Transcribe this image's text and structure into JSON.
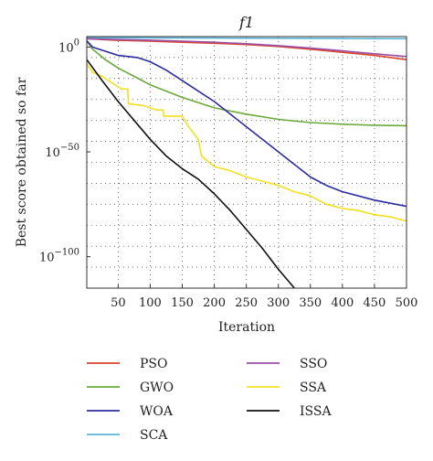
{
  "chart_data": {
    "type": "line",
    "title": "f1",
    "xlabel": "Iteration",
    "ylabel": "Best score obtained so far",
    "xscale": "linear",
    "yscale": "log",
    "xlim": [
      1,
      500
    ],
    "ylim_log10": [
      -115,
      5
    ],
    "xticks": [
      {
        "value": 50,
        "label": "50"
      },
      {
        "value": 100,
        "label": "100"
      },
      {
        "value": 150,
        "label": "150"
      },
      {
        "value": 200,
        "label": "200"
      },
      {
        "value": 250,
        "label": "250"
      },
      {
        "value": 300,
        "label": "300"
      },
      {
        "value": 350,
        "label": "350"
      },
      {
        "value": 400,
        "label": "400"
      },
      {
        "value": 450,
        "label": "450"
      },
      {
        "value": 500,
        "label": "500"
      }
    ],
    "yticks": [
      {
        "log10": 0,
        "base": "10",
        "exp": "0"
      },
      {
        "log10": -50,
        "base": "10",
        "exp": "−50"
      },
      {
        "log10": -100,
        "base": "10",
        "exp": "−100"
      }
    ],
    "grid": true,
    "legend_position": "below",
    "series": [
      {
        "name": "PSO",
        "color": "#d9442b",
        "x": [
          1,
          50,
          100,
          150,
          200,
          250,
          300,
          350,
          400,
          450,
          500
        ],
        "log10_y": [
          4,
          3.2,
          2.8,
          2.3,
          1.8,
          1.2,
          0.3,
          -1,
          -2.5,
          -4,
          -6
        ]
      },
      {
        "name": "GWO",
        "color": "#6aaa3a",
        "x": [
          1,
          10,
          30,
          50,
          75,
          100,
          125,
          150,
          200,
          250,
          300,
          350,
          400,
          450,
          500
        ],
        "log10_y": [
          3,
          -1,
          -6,
          -10,
          -14,
          -18,
          -21,
          -24,
          -29,
          -32,
          -34.5,
          -36,
          -36.8,
          -37.3,
          -37.5
        ]
      },
      {
        "name": "WOA",
        "color": "#2b2ba0",
        "x": [
          1,
          10,
          30,
          50,
          80,
          100,
          125,
          150,
          175,
          200,
          225,
          250,
          275,
          300,
          325,
          350,
          375,
          400,
          450,
          500
        ],
        "log10_y": [
          3,
          0,
          -2,
          -4,
          -5,
          -7,
          -11,
          -16,
          -21,
          -26,
          -32,
          -38,
          -44,
          -50,
          -56,
          -62,
          -66,
          -69,
          -73,
          -76
        ]
      },
      {
        "name": "SCA",
        "color": "#58b4d6",
        "x": [
          1,
          100,
          200,
          300,
          400,
          500
        ],
        "log10_y": [
          4.5,
          4.4,
          4.3,
          4.2,
          4.1,
          4.0
        ]
      },
      {
        "name": "SSO",
        "color": "#9a4fa6",
        "x": [
          1,
          50,
          100,
          150,
          200,
          250,
          300,
          350,
          400,
          450,
          500
        ],
        "log10_y": [
          4,
          3.6,
          3.3,
          2.8,
          2.3,
          1.6,
          0.7,
          -0.5,
          -1.8,
          -3.2,
          -4.5
        ]
      },
      {
        "name": "SSA",
        "color": "#f2e020",
        "x": [
          1,
          10,
          25,
          40,
          55,
          65,
          66,
          90,
          110,
          120,
          121,
          150,
          160,
          175,
          180,
          200,
          225,
          250,
          275,
          300,
          325,
          350,
          375,
          400,
          425,
          450,
          475,
          500
        ],
        "log10_y": [
          -8,
          -12,
          -14,
          -17,
          -20,
          -20,
          -27,
          -28,
          -30,
          -30,
          -33,
          -33,
          -38,
          -44,
          -52,
          -57,
          -59,
          -62,
          -64,
          -66,
          -69,
          -71,
          -75,
          -77,
          -78,
          -80,
          -81,
          -83
        ]
      },
      {
        "name": "ISSA",
        "color": "#111111",
        "x": [
          1,
          25,
          50,
          75,
          100,
          125,
          150,
          175,
          200,
          225,
          250,
          275,
          300,
          325
        ],
        "log10_y": [
          -6,
          -16,
          -26,
          -35,
          -44,
          -52,
          -58,
          -63,
          -70,
          -78,
          -87,
          -96,
          -106,
          -115
        ]
      }
    ]
  }
}
